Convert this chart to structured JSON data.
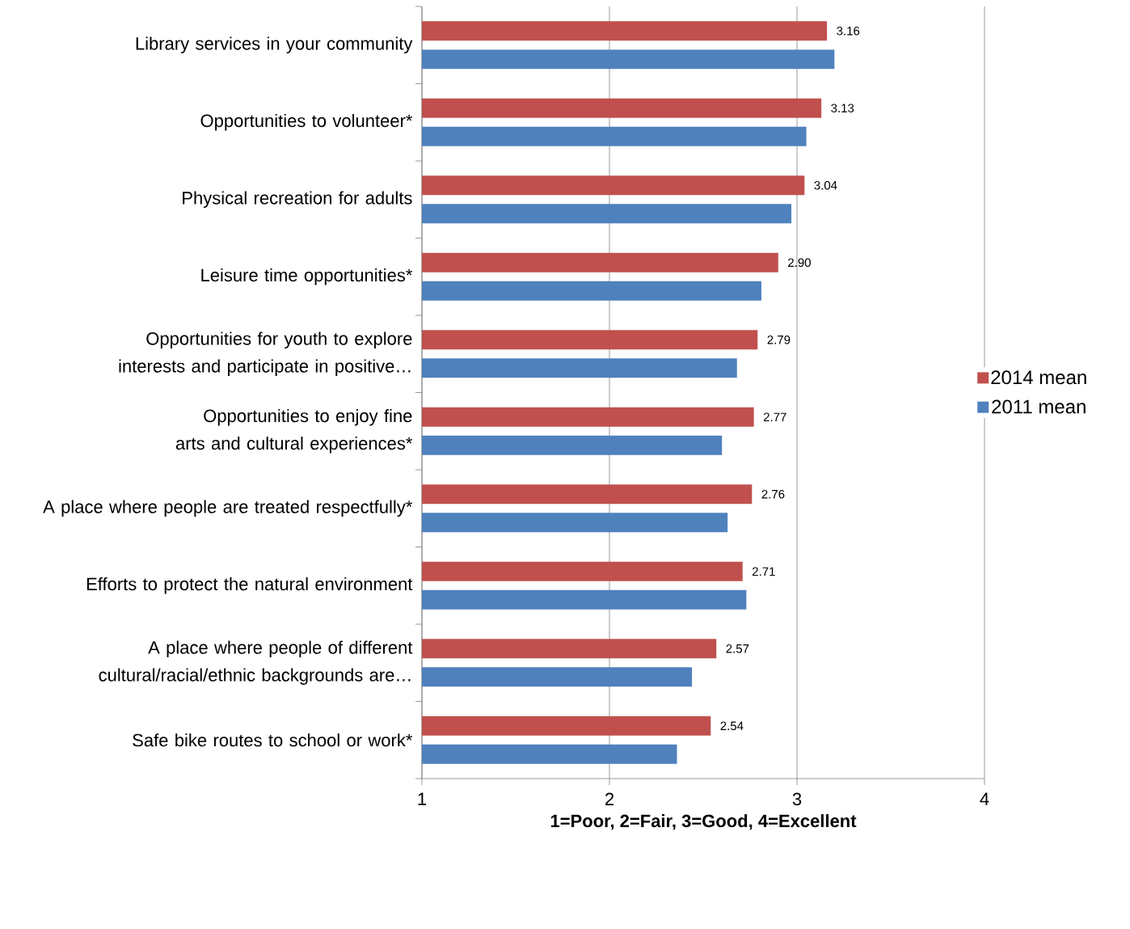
{
  "chart_data": {
    "type": "bar",
    "orientation": "horizontal",
    "xlabel": "1=Poor, 2=Fair, 3=Good, 4=Excellent",
    "categories": [
      "Library services in your community",
      "Opportunities to volunteer*",
      "Physical recreation for adults",
      "Leisure time opportunities*",
      "Opportunities for youth to explore interests and participate in positive…",
      "Opportunities to enjoy fine arts and cultural experiences*",
      "A place where people are treated respectfully*",
      "Efforts to protect the natural environment",
      "A place where people of different cultural/racial/ethnic backgrounds are…",
      "Safe bike routes to school or work*"
    ],
    "series": [
      {
        "name": "2014 mean",
        "color": "#c0504d",
        "values": [
          3.16,
          3.13,
          3.04,
          2.9,
          2.79,
          2.77,
          2.76,
          2.71,
          2.57,
          2.54
        ],
        "value_labels": [
          "3.16",
          "3.13",
          "3.04",
          "2.90",
          "2.79",
          "2.77",
          "2.76",
          "2.71",
          "2.57",
          "2.54"
        ]
      },
      {
        "name": "2011 mean",
        "color": "#4f81bd",
        "values": [
          3.2,
          3.05,
          2.97,
          2.81,
          2.68,
          2.6,
          2.63,
          2.73,
          2.44,
          2.36
        ]
      }
    ],
    "xlim": [
      1,
      4
    ],
    "xticks": [
      1,
      2,
      3,
      4
    ],
    "grid": "x",
    "legend": "right"
  }
}
